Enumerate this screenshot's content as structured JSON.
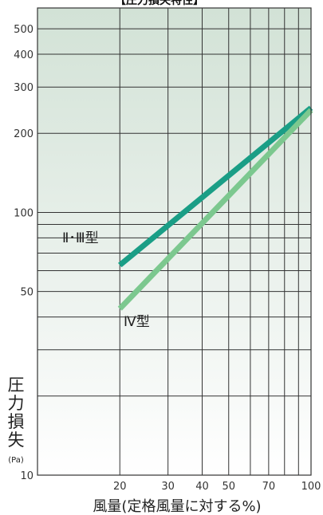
{
  "chart_data": {
    "type": "line",
    "title": "【圧力損失特性】",
    "xlabel": "風量(定格風量に対する%)",
    "ylabel": [
      "圧",
      "力",
      "損",
      "失"
    ],
    "yunit": "(Pa)",
    "xscale": "log",
    "yscale": "log",
    "xlim": [
      10,
      100
    ],
    "ylim": [
      10,
      600
    ],
    "xticks": [
      20,
      30,
      40,
      50,
      70,
      100
    ],
    "xtick_labels": [
      "20",
      "30",
      "40",
      "50",
      "70",
      "100"
    ],
    "x_gridlines": [
      20,
      30,
      40,
      50,
      60,
      70,
      80,
      90,
      100
    ],
    "yticks": [
      10,
      50,
      100,
      200,
      300,
      400,
      500
    ],
    "ytick_labels": [
      "10",
      "50",
      "100",
      "200",
      "300",
      "400",
      "500"
    ],
    "y_gridlines": [
      10,
      20,
      30,
      40,
      50,
      60,
      70,
      80,
      90,
      100,
      200,
      300,
      400,
      500,
      600
    ],
    "grid": true,
    "series": [
      {
        "name": "Ⅱ･Ⅲ型",
        "color": "#1a9e86",
        "x": [
          20,
          100
        ],
        "y": [
          63,
          250
        ]
      },
      {
        "name": "Ⅳ型",
        "color": "#7cc88f",
        "x": [
          20,
          100
        ],
        "y": [
          43,
          245
        ]
      }
    ]
  }
}
